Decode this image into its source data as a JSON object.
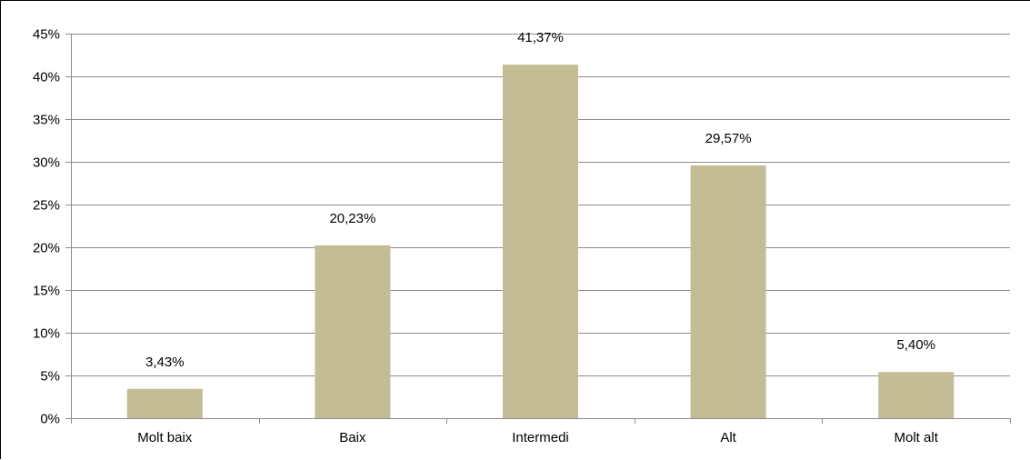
{
  "chart_data": {
    "type": "bar",
    "categories": [
      "Molt baix",
      "Baix",
      "Intermedi",
      "Alt",
      "Molt alt"
    ],
    "values": [
      3.43,
      20.23,
      41.37,
      29.57,
      5.4
    ],
    "data_labels": [
      "3,43%",
      "20,23%",
      "41,37%",
      "29,57%",
      "5,40%"
    ],
    "y_ticks": [
      "0%",
      "5%",
      "10%",
      "15%",
      "20%",
      "25%",
      "30%",
      "35%",
      "40%",
      "45%"
    ],
    "ylim": [
      0,
      45
    ],
    "grid": true,
    "bar_color": "#c4bc94",
    "grid_color": "#8c8c8c",
    "title": "",
    "xlabel": "",
    "ylabel": ""
  }
}
